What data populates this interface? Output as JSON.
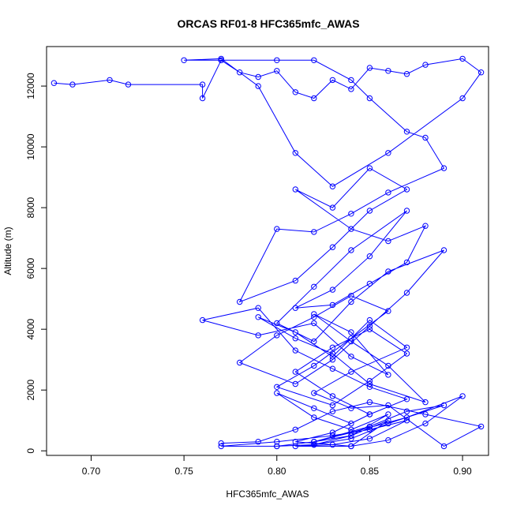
{
  "chart_data": {
    "type": "line",
    "title": "ORCAS RF01-8 HFC365mfc_AWAS",
    "xlabel": "HFC365mfc_AWAS",
    "ylabel": "Altitude (m)",
    "xlim": [
      0.676,
      0.914
    ],
    "ylim": [
      -150,
      13300
    ],
    "x_ticks": [
      0.7,
      0.75,
      0.8,
      0.85,
      0.9
    ],
    "x_tick_labels": [
      "0.70",
      "0.75",
      "0.80",
      "0.85",
      "0.90"
    ],
    "y_ticks": [
      0,
      2000,
      4000,
      6000,
      8000,
      10000,
      12000
    ],
    "y_tick_labels": [
      "0",
      "2000",
      "4000",
      "6000",
      "8000",
      "10000",
      "12000"
    ],
    "grid": false,
    "marker": "open-circle",
    "line_color": "#0000ff",
    "series": [
      {
        "x": [
          0.68,
          0.69,
          0.71,
          0.72,
          0.76,
          0.76,
          0.77,
          0.78,
          0.79,
          0.8,
          0.81,
          0.82,
          0.83,
          0.84,
          0.85,
          0.86,
          0.87,
          0.88,
          0.9,
          0.91,
          0.9,
          0.86,
          0.83,
          0.81,
          0.79,
          0.77,
          0.75,
          0.77,
          0.8,
          0.82,
          0.84,
          0.85,
          0.87,
          0.88,
          0.89,
          0.86,
          0.84,
          0.82,
          0.8,
          0.78,
          0.81,
          0.83,
          0.85,
          0.87,
          0.85,
          0.83,
          0.81,
          0.84,
          0.86,
          0.88,
          0.87,
          0.85,
          0.83,
          0.81,
          0.83,
          0.85,
          0.87,
          0.84,
          0.82,
          0.8,
          0.82,
          0.84,
          0.86,
          0.89,
          0.87,
          0.85,
          0.83,
          0.81,
          0.78,
          0.8,
          0.82,
          0.84,
          0.86,
          0.84,
          0.82,
          0.8,
          0.83,
          0.85,
          0.87,
          0.85,
          0.83,
          0.81,
          0.83,
          0.85,
          0.84,
          0.82,
          0.8,
          0.82,
          0.84,
          0.86,
          0.84,
          0.82,
          0.85,
          0.87,
          0.89,
          0.86,
          0.84,
          0.82,
          0.8,
          0.77,
          0.8,
          0.83,
          0.85,
          0.87,
          0.85,
          0.83,
          0.81,
          0.84,
          0.86,
          0.88,
          0.9,
          0.87,
          0.84,
          0.82,
          0.8,
          0.82,
          0.84,
          0.86,
          0.84,
          0.81,
          0.83,
          0.85,
          0.87,
          0.85,
          0.83,
          0.81,
          0.79,
          0.76,
          0.79,
          0.82,
          0.84,
          0.86,
          0.84,
          0.82,
          0.84,
          0.86,
          0.88,
          0.85,
          0.83,
          0.81,
          0.79,
          0.81,
          0.83,
          0.85,
          0.87,
          0.84,
          0.82,
          0.84,
          0.86,
          0.89,
          0.91,
          0.88,
          0.85,
          0.83,
          0.81,
          0.79,
          0.77
        ],
        "y": [
          12100,
          12050,
          12200,
          12050,
          12050,
          11600,
          12850,
          12450,
          12300,
          12500,
          11800,
          11600,
          12200,
          11900,
          12600,
          12500,
          12400,
          12700,
          12900,
          12450,
          11600,
          9800,
          8700,
          9800,
          12000,
          12900,
          12850,
          12850,
          12850,
          12850,
          12200,
          11600,
          10500,
          10300,
          9300,
          8500,
          7800,
          7200,
          7300,
          4900,
          5600,
          6700,
          7900,
          8600,
          9300,
          8000,
          8600,
          7300,
          6900,
          7400,
          6200,
          5500,
          4800,
          4700,
          5300,
          6400,
          7900,
          6600,
          5400,
          4200,
          3600,
          4900,
          5900,
          6600,
          5200,
          4100,
          3000,
          2200,
          2900,
          3800,
          4400,
          5100,
          4600,
          3700,
          2800,
          2100,
          1500,
          2300,
          3200,
          4000,
          3400,
          2600,
          1800,
          1200,
          900,
          1400,
          1900,
          1100,
          700,
          1200,
          500,
          300,
          800,
          1300,
          1500,
          900,
          400,
          200,
          150,
          150,
          300,
          500,
          700,
          1000,
          400,
          200,
          150,
          150,
          350,
          900,
          1800,
          1100,
          600,
          300,
          150,
          200,
          500,
          1000,
          150,
          300,
          600,
          1200,
          1700,
          2100,
          2700,
          3300,
          4700,
          4300,
          3800,
          4200,
          3100,
          2500,
          3900,
          4500,
          3600,
          2800,
          1600,
          2200,
          3200,
          3700,
          4400,
          3900,
          3100,
          4300,
          3400,
          2600,
          1900,
          1400,
          1500,
          150,
          800,
          1200,
          1600,
          1300,
          700,
          300,
          250
        ]
      }
    ]
  }
}
